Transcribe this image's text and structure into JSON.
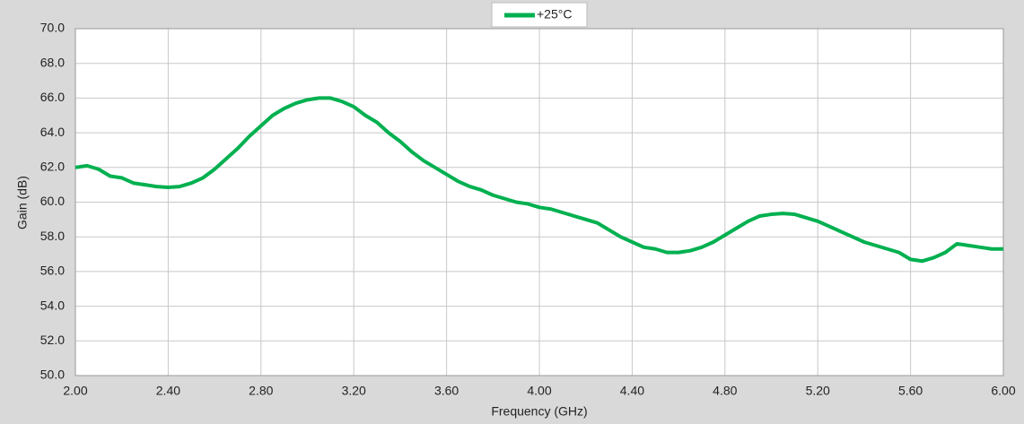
{
  "chart_data": {
    "type": "line",
    "x_label": "Frequency (GHz)",
    "y_label": "Gain (dB)",
    "x": [
      2.0,
      2.05,
      2.1,
      2.15,
      2.2,
      2.25,
      2.3,
      2.35,
      2.4,
      2.45,
      2.5,
      2.55,
      2.6,
      2.65,
      2.7,
      2.75,
      2.8,
      2.85,
      2.9,
      2.95,
      3.0,
      3.05,
      3.1,
      3.15,
      3.2,
      3.25,
      3.3,
      3.35,
      3.4,
      3.45,
      3.5,
      3.55,
      3.6,
      3.65,
      3.7,
      3.75,
      3.8,
      3.85,
      3.9,
      3.95,
      4.0,
      4.05,
      4.1,
      4.15,
      4.2,
      4.25,
      4.3,
      4.35,
      4.4,
      4.45,
      4.5,
      4.55,
      4.6,
      4.65,
      4.7,
      4.75,
      4.8,
      4.85,
      4.9,
      4.95,
      5.0,
      5.05,
      5.1,
      5.15,
      5.2,
      5.25,
      5.3,
      5.35,
      5.4,
      5.45,
      5.5,
      5.55,
      5.6,
      5.65,
      5.7,
      5.75,
      5.8,
      5.85,
      5.9,
      5.95,
      6.0
    ],
    "series": [
      {
        "name": "+25°C",
        "color": "#00b050",
        "values": [
          62.0,
          62.1,
          61.9,
          61.5,
          61.4,
          61.1,
          61.0,
          60.9,
          60.85,
          60.9,
          61.1,
          61.4,
          61.9,
          62.5,
          63.1,
          63.8,
          64.4,
          65.0,
          65.4,
          65.7,
          65.9,
          66.0,
          66.0,
          65.8,
          65.5,
          65.0,
          64.6,
          64.0,
          63.5,
          62.9,
          62.4,
          62.0,
          61.6,
          61.2,
          60.9,
          60.7,
          60.4,
          60.2,
          60.0,
          59.9,
          59.7,
          59.6,
          59.4,
          59.2,
          59.0,
          58.8,
          58.4,
          58.0,
          57.7,
          57.4,
          57.3,
          57.1,
          57.1,
          57.2,
          57.4,
          57.7,
          58.1,
          58.5,
          58.9,
          59.2,
          59.3,
          59.35,
          59.3,
          59.1,
          58.9,
          58.6,
          58.3,
          58.0,
          57.7,
          57.5,
          57.3,
          57.1,
          56.7,
          56.6,
          56.8,
          57.1,
          57.6,
          57.5,
          57.4,
          57.3,
          57.3
        ]
      }
    ],
    "xlim": [
      2,
      6
    ],
    "xticks": [
      {
        "value": 2,
        "label": "2.00"
      },
      {
        "value": 2.4,
        "label": "2.40"
      },
      {
        "value": 2.8,
        "label": "2.80"
      },
      {
        "value": 3.2,
        "label": "3.20"
      },
      {
        "value": 3.6,
        "label": "3.60"
      },
      {
        "value": 4,
        "label": "4.00"
      },
      {
        "value": 4.4,
        "label": "4.40"
      },
      {
        "value": 4.8,
        "label": "4.80"
      },
      {
        "value": 5.2,
        "label": "5.20"
      },
      {
        "value": 5.6,
        "label": "5.60"
      },
      {
        "value": 6,
        "label": "6.00"
      }
    ],
    "ylim": [
      50,
      70
    ],
    "yticks": [
      {
        "value": 50,
        "label": "50.0"
      },
      {
        "value": 52,
        "label": "52.0"
      },
      {
        "value": 54,
        "label": "54.0"
      },
      {
        "value": 56,
        "label": "56.0"
      },
      {
        "value": 58,
        "label": "58.0"
      },
      {
        "value": 60,
        "label": "60.0"
      },
      {
        "value": 62,
        "label": "62.0"
      },
      {
        "value": 64,
        "label": "64.0"
      },
      {
        "value": 66,
        "label": "66.0"
      },
      {
        "value": 68,
        "label": "68.0"
      },
      {
        "value": 70,
        "label": "70.0"
      }
    ],
    "grid": true,
    "legend": "top"
  }
}
